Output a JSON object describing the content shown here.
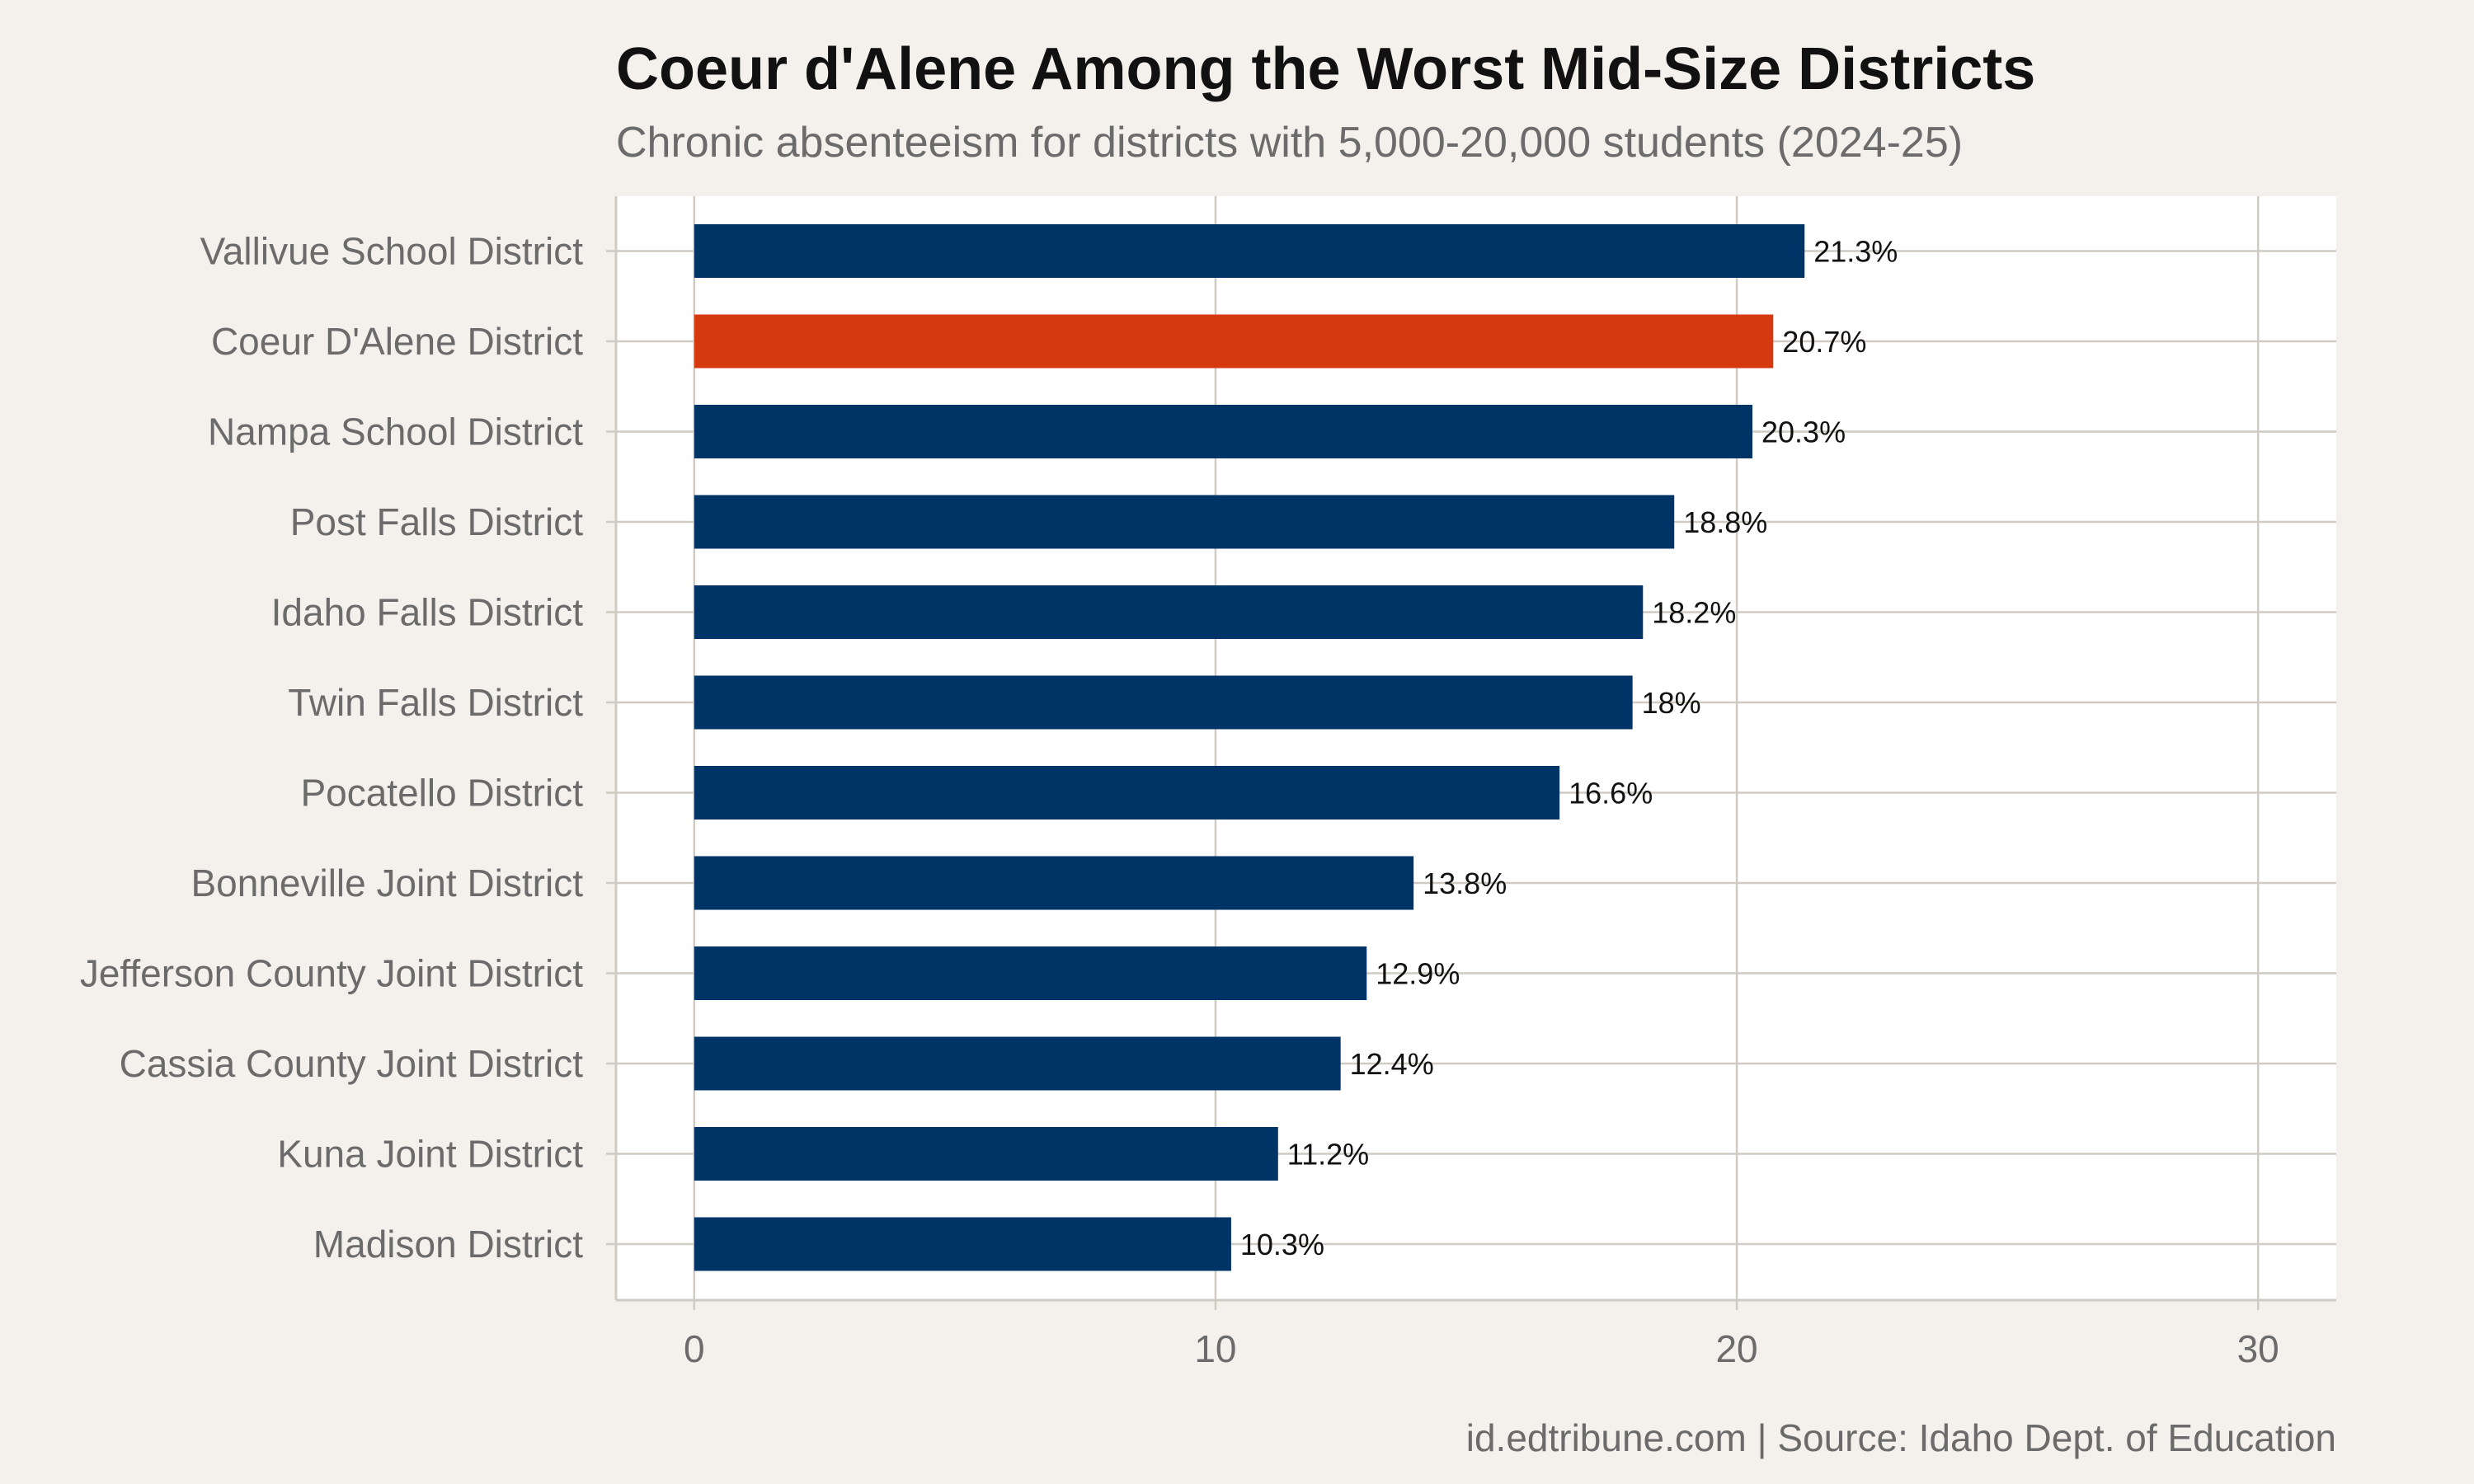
{
  "chart_data": {
    "type": "bar",
    "orientation": "horizontal",
    "title": "Coeur d'Alene Among the Worst Mid-Size Districts",
    "subtitle": "Chronic absenteeism for districts with 5,000-20,000 students (2024-25)",
    "caption": "id.edtribune.com | Source: Idaho Dept. of Education",
    "xlabel": "",
    "ylabel": "",
    "xlim": [
      -1.5,
      31.5
    ],
    "x_ticks": [
      0,
      10,
      20,
      30
    ],
    "grid": true,
    "legend": "none",
    "categories": [
      "Vallivue School District",
      "Coeur D'Alene District",
      "Nampa School District",
      "Post Falls District",
      "Idaho Falls District",
      "Twin Falls District",
      "Pocatello District",
      "Bonneville Joint District",
      "Jefferson County Joint District",
      "Cassia County Joint District",
      "Kuna Joint District",
      "Madison District"
    ],
    "values": [
      21.3,
      20.7,
      20.3,
      18.8,
      18.2,
      18.0,
      16.6,
      13.8,
      12.9,
      12.4,
      11.2,
      10.3
    ],
    "value_labels": [
      "21.3%",
      "20.7%",
      "20.3%",
      "18.8%",
      "18.2%",
      "18%",
      "16.6%",
      "13.8%",
      "12.9%",
      "12.4%",
      "11.2%",
      "10.3%"
    ],
    "highlight_category": "Coeur D'Alene District",
    "colors": {
      "bar": "#003366",
      "highlight": "#d4390f",
      "background": "#f4f1ec",
      "panel": "#ffffff",
      "grid": "#cfcac2"
    }
  }
}
